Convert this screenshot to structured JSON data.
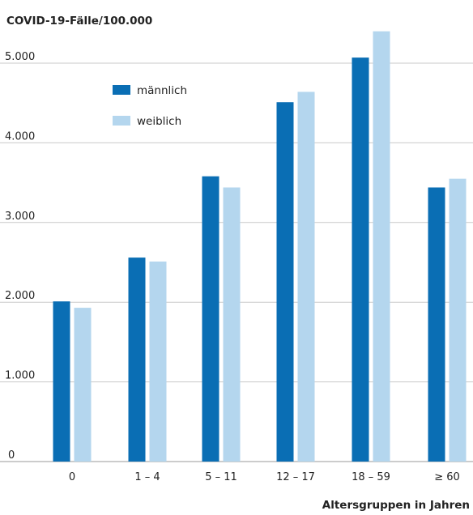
{
  "chart_data": {
    "type": "bar",
    "ylabel": "COVID-19-Fälle/100.000",
    "xlabel": "Altersgruppen in Jahren",
    "categories": [
      "0",
      "1 – 4",
      "5 – 11",
      "12 – 17",
      "18 – 59",
      "≥ 60"
    ],
    "series": [
      {
        "name": "männlich",
        "color": "#0a6eb4",
        "values": [
          2010,
          2560,
          3580,
          4510,
          5070,
          3440
        ]
      },
      {
        "name": "weiblich",
        "color": "#b4d6ee",
        "values": [
          1930,
          2510,
          3440,
          4640,
          5400,
          3550
        ]
      }
    ],
    "ylim": [
      0,
      5500
    ],
    "yticks": [
      0,
      1000,
      2000,
      3000,
      4000,
      5000
    ],
    "ytick_labels": [
      "0",
      "1.000",
      "2.000",
      "3.000",
      "4.000",
      "5.000"
    ],
    "grid": true,
    "gridline_color": "#c9c9c9",
    "legend_placement": "upper-left"
  }
}
